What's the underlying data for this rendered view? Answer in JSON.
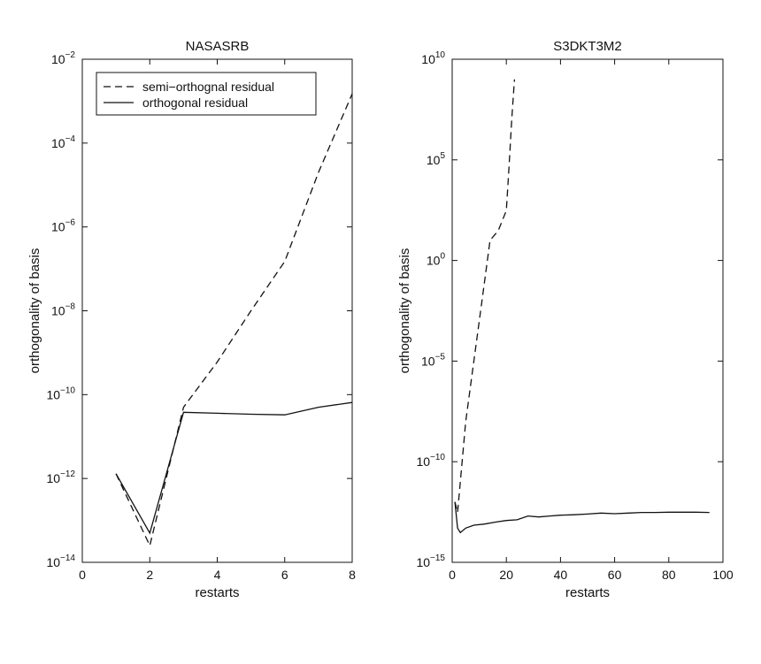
{
  "chart_data": [
    {
      "type": "line",
      "title": "NASASRB",
      "xlabel": "restarts",
      "ylabel": "orthogonality of basis",
      "xlim": [
        0,
        8
      ],
      "ylim_log10": [
        -14,
        -2
      ],
      "y_scale": "log",
      "x_ticks": [
        "0",
        "2",
        "4",
        "6",
        "8"
      ],
      "y_ticks": [
        {
          "base": "10",
          "exp": "-2"
        },
        {
          "base": "10",
          "exp": "-4"
        },
        {
          "base": "10",
          "exp": "-6"
        },
        {
          "base": "10",
          "exp": "-8"
        },
        {
          "base": "10",
          "exp": "-10"
        },
        {
          "base": "10",
          "exp": "-12"
        },
        {
          "base": "10",
          "exp": "-14"
        }
      ],
      "legend": {
        "position": "top-left",
        "entries": [
          {
            "label": "semi−orthognal residual",
            "style": "dashed"
          },
          {
            "label": "orthogonal residual",
            "style": "solid"
          }
        ]
      },
      "series": [
        {
          "name": "semi−orthognal residual",
          "style": "dashed",
          "x": [
            1,
            2,
            3,
            4,
            5,
            6,
            7,
            8
          ],
          "y": [
            1.3e-12,
            2.5e-14,
            5e-11,
            6e-10,
            1e-08,
            1.5e-07,
            2e-05,
            0.0015
          ]
        },
        {
          "name": "orthogonal residual",
          "style": "solid",
          "x": [
            1,
            2,
            3,
            4,
            5,
            6,
            7,
            8
          ],
          "y": [
            1.3e-12,
            5e-14,
            3.8e-11,
            3.6e-11,
            3.4e-11,
            3.3e-11,
            5e-11,
            6.5e-11
          ]
        }
      ]
    },
    {
      "type": "line",
      "title": "S3DKT3M2",
      "xlabel": "restarts",
      "ylabel": "orthogonality of basis",
      "xlim": [
        0,
        100
      ],
      "ylim_log10": [
        -15,
        10
      ],
      "y_scale": "log",
      "x_ticks": [
        "0",
        "20",
        "40",
        "60",
        "80",
        "100"
      ],
      "y_ticks": [
        {
          "base": "10",
          "exp": "10"
        },
        {
          "base": "10",
          "exp": "5"
        },
        {
          "base": "10",
          "exp": "0"
        },
        {
          "base": "10",
          "exp": "-5"
        },
        {
          "base": "10",
          "exp": "-10"
        },
        {
          "base": "10",
          "exp": "-15"
        }
      ],
      "series": [
        {
          "name": "",
          "style": "dashed",
          "x": [
            1,
            2,
            3,
            5,
            8,
            11,
            14,
            17,
            20,
            21,
            22,
            23
          ],
          "y": [
            1e-12,
            3e-13,
            1e-11,
            1e-08,
            1e-05,
            0.01,
            10.0,
            30.0,
            300.0,
            50000.0,
            10000000.0,
            1000000000.0
          ]
        },
        {
          "name": "",
          "style": "solid",
          "x": [
            1,
            2,
            3,
            5,
            8,
            12,
            16,
            20,
            24,
            28,
            32,
            36,
            40,
            45,
            50,
            55,
            60,
            65,
            70,
            75,
            80,
            85,
            90,
            95
          ],
          "y": [
            1e-12,
            5e-14,
            3e-14,
            5e-14,
            7e-14,
            8e-14,
            1e-13,
            1.2e-13,
            1.3e-13,
            2e-13,
            1.8e-13,
            2e-13,
            2.2e-13,
            2.3e-13,
            2.5e-13,
            2.8e-13,
            2.6e-13,
            2.8e-13,
            3e-13,
            3e-13,
            3.1e-13,
            3.1e-13,
            3.1e-13,
            3e-13
          ]
        }
      ]
    }
  ]
}
